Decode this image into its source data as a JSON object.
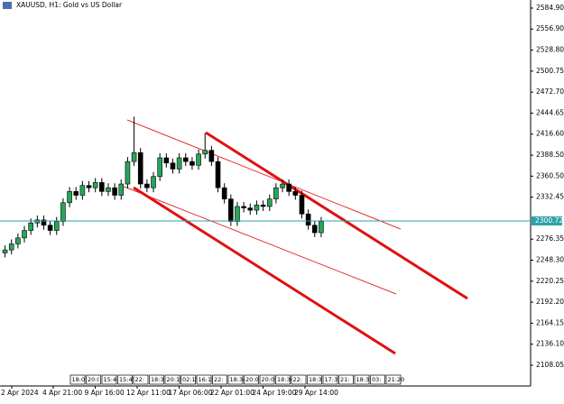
{
  "chart_data": {
    "type": "candlestick",
    "title": "XAUUSD, H1:  Gold vs US Dollar",
    "open": [
      2258,
      2262,
      2270,
      2278,
      2288,
      2298,
      2302,
      2295,
      2288,
      2300,
      2325,
      2340,
      2335,
      2348,
      2345,
      2352,
      2340,
      2345,
      2335,
      2350,
      2380,
      2392,
      2350,
      2345,
      2360,
      2385,
      2378,
      2370,
      2385,
      2380,
      2375,
      2390,
      2395,
      2380,
      2345,
      2330,
      2300,
      2320,
      2318,
      2315,
      2322,
      2320,
      2330,
      2345,
      2350,
      2340,
      2335,
      2310,
      2295,
      2285
    ],
    "high": [
      2268,
      2276,
      2284,
      2294,
      2304,
      2308,
      2308,
      2301,
      2306,
      2331,
      2346,
      2346,
      2354,
      2354,
      2358,
      2358,
      2351,
      2351,
      2356,
      2386,
      2440,
      2398,
      2356,
      2366,
      2391,
      2391,
      2384,
      2391,
      2391,
      2386,
      2396,
      2418,
      2401,
      2386,
      2351,
      2336,
      2326,
      2326,
      2324,
      2328,
      2328,
      2336,
      2351,
      2356,
      2356,
      2346,
      2341,
      2316,
      2301,
      2306
    ],
    "low": [
      2252,
      2256,
      2264,
      2272,
      2282,
      2292,
      2289,
      2282,
      2282,
      2294,
      2319,
      2329,
      2329,
      2339,
      2339,
      2334,
      2334,
      2329,
      2329,
      2344,
      2374,
      2344,
      2339,
      2339,
      2354,
      2372,
      2364,
      2364,
      2374,
      2369,
      2369,
      2384,
      2374,
      2339,
      2324,
      2294,
      2294,
      2312,
      2309,
      2309,
      2314,
      2314,
      2324,
      2339,
      2334,
      2329,
      2304,
      2289,
      2279,
      2279
    ],
    "close": [
      2262,
      2270,
      2278,
      2288,
      2298,
      2302,
      2295,
      2288,
      2300,
      2325,
      2340,
      2335,
      2348,
      2345,
      2352,
      2340,
      2345,
      2335,
      2350,
      2380,
      2392,
      2350,
      2345,
      2360,
      2385,
      2378,
      2370,
      2385,
      2380,
      2375,
      2390,
      2395,
      2380,
      2345,
      2330,
      2300,
      2320,
      2318,
      2315,
      2322,
      2320,
      2330,
      2345,
      2350,
      2340,
      2335,
      2310,
      2295,
      2285,
      2300
    ],
    "up_color": "#26a65b",
    "down_color": "#000000",
    "ylim": [
      2098.4,
      2595.7
    ],
    "yticks": [
      {
        "value": 2584.9,
        "label": "2584.90"
      },
      {
        "value": 2556.9,
        "label": "2556.90"
      },
      {
        "value": 2528.8,
        "label": "2528.80"
      },
      {
        "value": 2500.75,
        "label": "2500.75"
      },
      {
        "value": 2472.7,
        "label": "2472.70"
      },
      {
        "value": 2444.65,
        "label": "2444.65"
      },
      {
        "value": 2416.6,
        "label": "2416.60"
      },
      {
        "value": 2388.5,
        "label": "2388.50"
      },
      {
        "value": 2360.5,
        "label": "2360.50"
      },
      {
        "value": 2332.45,
        "label": "2332.45"
      },
      {
        "value": 2276.35,
        "label": "2276.35"
      },
      {
        "value": 2248.3,
        "label": "2248.30"
      },
      {
        "value": 2220.25,
        "label": "2220.25"
      },
      {
        "value": 2192.2,
        "label": "2192.20"
      },
      {
        "value": 2164.15,
        "label": "2164.15"
      },
      {
        "value": 2136.1,
        "label": "2136.10"
      },
      {
        "value": 2108.05,
        "label": "2108.05"
      }
    ],
    "current_price": {
      "value": 2300.72,
      "label": "2300.72"
    },
    "x_labels": [
      "2 Apr 2024",
      "4 Apr 21:00",
      "9 Apr 16:00",
      "12 Apr 11:00",
      "17 Apr 06:00",
      "22 Apr 01:00",
      "24 Apr 19:00",
      "29 Apr 14:00"
    ],
    "trade_markers": [
      "18:0",
      "20:(",
      "15:4",
      "15:45",
      "22:",
      "18:3",
      "20:15",
      "02:15",
      "16:15",
      "22:",
      "18:34",
      "20:0",
      "20:0",
      "18:30",
      "22:",
      "18:3",
      "17:3",
      "21:",
      "18:3",
      "03:",
      "21:20"
    ]
  }
}
